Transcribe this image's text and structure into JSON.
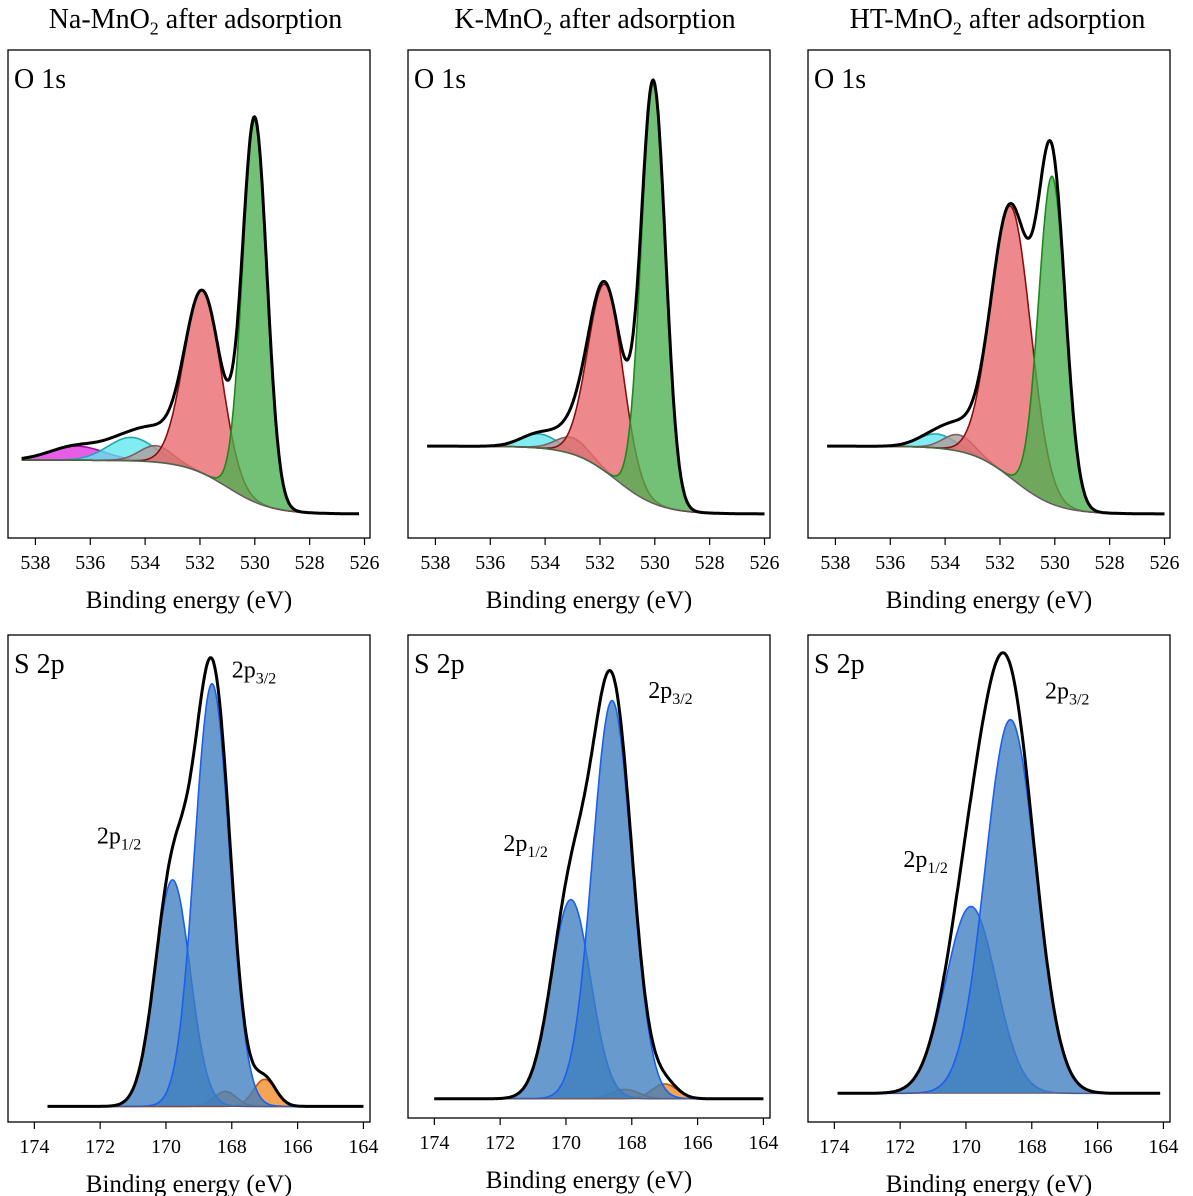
{
  "columns": [
    {
      "pre": "Na-MnO",
      "sub": "2",
      "post": " after adsorption"
    },
    {
      "pre": "K-MnO",
      "sub": "2",
      "post": " after adsorption"
    },
    {
      "pre": "HT-MnO",
      "sub": "2",
      "post": " after adsorption"
    }
  ],
  "chart_data": [
    {
      "type": "line",
      "title": "Na-MnO2 after adsorption",
      "panel_label": "O 1s",
      "xlabel": "Binding energy (eV)",
      "xlim": [
        539,
        525.8
      ],
      "xticks": [
        538,
        536,
        534,
        532,
        530,
        528,
        526
      ],
      "ylim": [
        0,
        1
      ],
      "grid": false,
      "x_reversed": true,
      "annotations": [],
      "components": [
        {
          "name": "O-peak-530.0",
          "color": "#4caf50",
          "line": "#1a8a1a",
          "center": 530.0,
          "fwhm": 1.05,
          "height": 0.815
        },
        {
          "name": "O-peak-531.9",
          "color": "#e8686b",
          "line": "#8b0f0f",
          "center": 531.9,
          "fwhm": 1.6,
          "height": 0.39
        },
        {
          "name": "O-peak-533.6",
          "color": "#b09a9a",
          "line": "#806060",
          "center": 533.6,
          "fwhm": 1.4,
          "height": 0.035
        },
        {
          "name": "O-peak-534.5",
          "color": "#5ee8ee",
          "line": "#20a8b0",
          "center": 534.5,
          "fwhm": 2.0,
          "height": 0.05
        },
        {
          "name": "O-peak-536.5",
          "color": "#e030e0",
          "line": "#a010a0",
          "center": 536.5,
          "fwhm": 2.3,
          "height": 0.03
        }
      ],
      "baseline": {
        "left": 538.5,
        "right": 526.2,
        "left_level": 0.145,
        "right_level": 0.03,
        "step_center": 531.0,
        "step_width": 0.8
      }
    },
    {
      "type": "line",
      "title": "K-MnO2 after adsorption",
      "panel_label": "O 1s",
      "xlabel": "Binding energy (eV)",
      "xlim": [
        539,
        525.8
      ],
      "xticks": [
        538,
        536,
        534,
        532,
        530,
        528,
        526
      ],
      "ylim": [
        0,
        1
      ],
      "grid": false,
      "x_reversed": true,
      "annotations": [],
      "components": [
        {
          "name": "O-peak-530.0",
          "color": "#4caf50",
          "line": "#1a8a1a",
          "center": 530.05,
          "fwhm": 1.05,
          "height": 0.895
        },
        {
          "name": "O-peak-531.8",
          "color": "#e8686b",
          "line": "#8b0f0f",
          "center": 531.8,
          "fwhm": 1.5,
          "height": 0.4
        },
        {
          "name": "O-peak-533.0",
          "color": "#b09a9a",
          "line": "#806060",
          "center": 533.0,
          "fwhm": 1.4,
          "height": 0.035
        },
        {
          "name": "O-peak-534.2",
          "color": "#5ee8ee",
          "line": "#20a8b0",
          "center": 534.2,
          "fwhm": 1.6,
          "height": 0.03
        }
      ],
      "baseline": {
        "left": 538.3,
        "right": 526.0,
        "left_level": 0.175,
        "right_level": 0.03,
        "step_center": 531.4,
        "step_width": 0.8
      }
    },
    {
      "type": "line",
      "title": "HT-MnO2 after adsorption",
      "panel_label": "O 1s",
      "xlabel": "Binding energy (eV)",
      "xlim": [
        539,
        525.8
      ],
      "xticks": [
        538,
        536,
        534,
        532,
        530,
        528,
        526
      ],
      "ylim": [
        0,
        1
      ],
      "grid": false,
      "x_reversed": true,
      "annotations": [],
      "components": [
        {
          "name": "O-peak-530.1",
          "color": "#4caf50",
          "line": "#1a8a1a",
          "center": 530.1,
          "fwhm": 1.15,
          "height": 0.7
        },
        {
          "name": "O-peak-531.6",
          "color": "#e8686b",
          "line": "#8b0f0f",
          "center": 531.6,
          "fwhm": 1.7,
          "height": 0.58
        },
        {
          "name": "O-peak-533.5",
          "color": "#b09a9a",
          "line": "#806060",
          "center": 533.5,
          "fwhm": 1.3,
          "height": 0.035
        },
        {
          "name": "O-peak-534.3",
          "color": "#5ee8ee",
          "line": "#20a8b0",
          "center": 534.3,
          "fwhm": 1.6,
          "height": 0.03
        }
      ],
      "baseline": {
        "left": 538.3,
        "right": 526.0,
        "left_level": 0.175,
        "right_level": 0.03,
        "step_center": 531.5,
        "step_width": 0.8
      }
    },
    {
      "type": "line",
      "title": "Na-MnO2 after adsorption",
      "panel_label": "S 2p",
      "xlabel": "Binding energy (eV)",
      "xlim": [
        174.8,
        163.8
      ],
      "xticks": [
        174,
        172,
        170,
        168,
        166,
        164
      ],
      "ylim": [
        0,
        1
      ],
      "grid": false,
      "x_reversed": true,
      "annotations": [
        {
          "text": "2p",
          "sub": "3/2",
          "x": 168.0,
          "y": 0.93
        },
        {
          "text": "2p",
          "sub": "1/2",
          "x": 172.1,
          "y": 0.575
        }
      ],
      "components": [
        {
          "name": "S-2p3/2",
          "color": "#3d7ebf",
          "line": "#1a5ff0",
          "center": 168.6,
          "fwhm": 1.25,
          "height": 0.905
        },
        {
          "name": "S-2p1/2",
          "color": "#3d7ebf",
          "line": "#1a5ff0",
          "center": 169.8,
          "fwhm": 1.25,
          "height": 0.485
        },
        {
          "name": "S-minor-168.2",
          "color": "#f08a24",
          "line": "#c05a00",
          "center": 168.2,
          "fwhm": 0.8,
          "height": 0.032
        },
        {
          "name": "S-minor-167.0",
          "color": "#f08a24",
          "line": "#c05a00",
          "center": 167.0,
          "fwhm": 0.8,
          "height": 0.058
        }
      ],
      "baseline": {
        "left": 173.6,
        "right": 164.0,
        "left_level": 0.012,
        "right_level": 0.012,
        "step_center": 168.6,
        "step_width": 1.0
      }
    },
    {
      "type": "line",
      "title": "K-MnO2 after adsorption",
      "panel_label": "S 2p",
      "xlabel": "Binding energy (eV)",
      "xlim": [
        174.8,
        163.8
      ],
      "xticks": [
        174,
        172,
        170,
        168,
        166,
        164
      ],
      "ylim": [
        0,
        1
      ],
      "grid": false,
      "x_reversed": true,
      "annotations": [
        {
          "text": "2p",
          "sub": "3/2",
          "x": 167.5,
          "y": 0.885
        },
        {
          "text": "2p",
          "sub": "1/2",
          "x": 171.9,
          "y": 0.555
        }
      ],
      "components": [
        {
          "name": "S-2p3/2",
          "color": "#3d7ebf",
          "line": "#1a5ff0",
          "center": 168.6,
          "fwhm": 1.4,
          "height": 0.86
        },
        {
          "name": "S-2p1/2",
          "color": "#3d7ebf",
          "line": "#1a5ff0",
          "center": 169.85,
          "fwhm": 1.4,
          "height": 0.43
        },
        {
          "name": "S-minor-168.2",
          "color": "#f08a24",
          "line": "#c05a00",
          "center": 168.2,
          "fwhm": 1.0,
          "height": 0.02
        },
        {
          "name": "S-minor-167.0",
          "color": "#f08a24",
          "line": "#c05a00",
          "center": 167.0,
          "fwhm": 0.9,
          "height": 0.032
        }
      ],
      "baseline": {
        "left": 174.0,
        "right": 164.0,
        "left_level": 0.02,
        "right_level": 0.02,
        "step_center": 168.6,
        "step_width": 1.0
      }
    },
    {
      "type": "line",
      "title": "HT-MnO2 after adsorption",
      "panel_label": "S 2p",
      "xlabel": "Binding energy (eV)",
      "xlim": [
        174.8,
        163.8
      ],
      "xticks": [
        174,
        172,
        170,
        168,
        166,
        164
      ],
      "ylim": [
        0,
        1
      ],
      "grid": false,
      "x_reversed": true,
      "annotations": [
        {
          "text": "2p",
          "sub": "3/2",
          "x": 167.6,
          "y": 0.885
        },
        {
          "text": "2p",
          "sub": "1/2",
          "x": 171.9,
          "y": 0.525
        }
      ],
      "components": [
        {
          "name": "S-2p3/2",
          "color": "#3d7ebf",
          "line": "#1a5ff0",
          "center": 168.65,
          "fwhm": 1.8,
          "height": 0.8
        },
        {
          "name": "S-2p1/2",
          "color": "#3d7ebf",
          "line": "#1a5ff0",
          "center": 169.85,
          "fwhm": 1.8,
          "height": 0.4
        }
      ],
      "baseline": {
        "left": 173.9,
        "right": 164.1,
        "left_level": 0.04,
        "right_level": 0.04,
        "step_center": 169.0,
        "step_width": 1.0
      }
    }
  ]
}
